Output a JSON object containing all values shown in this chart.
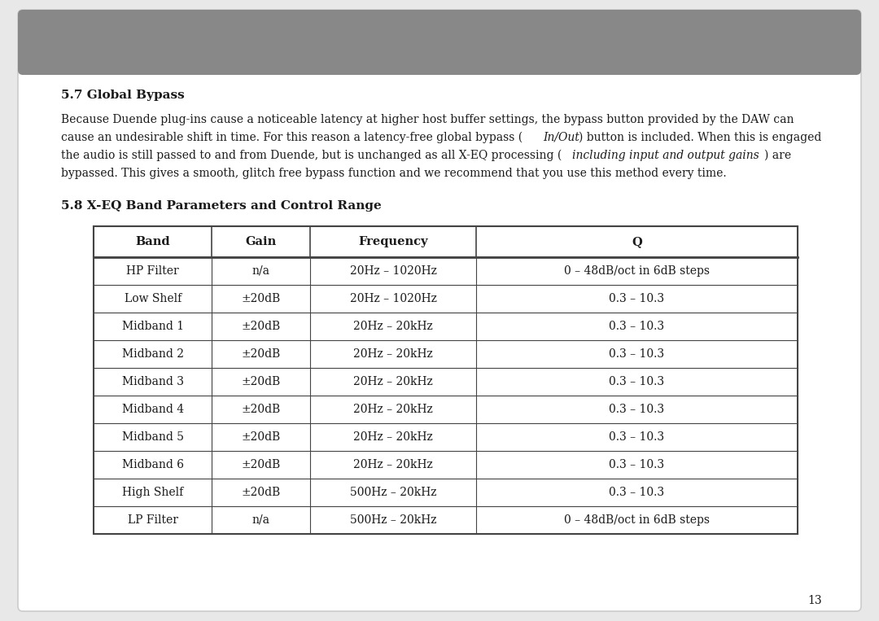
{
  "page_bg": "#e8e8e8",
  "card_bg": "#ffffff",
  "header_bg": "#888888",
  "page_number": "13",
  "section_57_title": "5.7 Global Bypass",
  "section_57_body_parts": [
    {
      "text": "Because Duende plug-ins cause a noticeable latency at higher host buffer settings, the bypass button provided by the DAW can\ncause an undesirable shift in time. For this reason a latency-free global bypass (",
      "italic": false
    },
    {
      "text": "In/Out",
      "italic": true
    },
    {
      "text": ") button is included. When this is engaged\nthe audio is still passed to and from Duende, but is unchanged as all X-EQ processing (",
      "italic": false
    },
    {
      "text": "including input and output gains",
      "italic": true
    },
    {
      "text": ") are\nbypassed. This gives a smooth, glitch free bypass function and we recommend that you use this method every time.",
      "italic": false
    }
  ],
  "section_58_title": "5.8 X-EQ Band Parameters and Control Range",
  "table_headers": [
    "Band",
    "Gain",
    "Frequency",
    "Q"
  ],
  "table_rows": [
    [
      "HP Filter",
      "n/a",
      "20Hz – 1020Hz",
      "0 – 48dB/oct in 6dB steps"
    ],
    [
      "Low Shelf",
      "±20dB",
      "20Hz – 1020Hz",
      "0.3 – 10.3"
    ],
    [
      "Midband 1",
      "±20dB",
      "20Hz – 20kHz",
      "0.3 – 10.3"
    ],
    [
      "Midband 2",
      "±20dB",
      "20Hz – 20kHz",
      "0.3 – 10.3"
    ],
    [
      "Midband 3",
      "±20dB",
      "20Hz – 20kHz",
      "0.3 – 10.3"
    ],
    [
      "Midband 4",
      "±20dB",
      "20Hz – 20kHz",
      "0.3 – 10.3"
    ],
    [
      "Midband 5",
      "±20dB",
      "20Hz – 20kHz",
      "0.3 – 10.3"
    ],
    [
      "Midband 6",
      "±20dB",
      "20Hz – 20kHz",
      "0.3 – 10.3"
    ],
    [
      "High Shelf",
      "±20dB",
      "500Hz – 20kHz",
      "0.3 – 10.3"
    ],
    [
      "LP Filter",
      "n/a",
      "500Hz – 20kHz",
      "0 – 48dB/oct in 6dB steps"
    ]
  ],
  "text_color": "#1a1a1a",
  "border_color": "#444444",
  "font_size_body": 10.0,
  "font_size_section": 11.0,
  "font_size_table_header": 10.5,
  "font_size_table_cell": 10.0,
  "font_size_page_num": 10.0
}
